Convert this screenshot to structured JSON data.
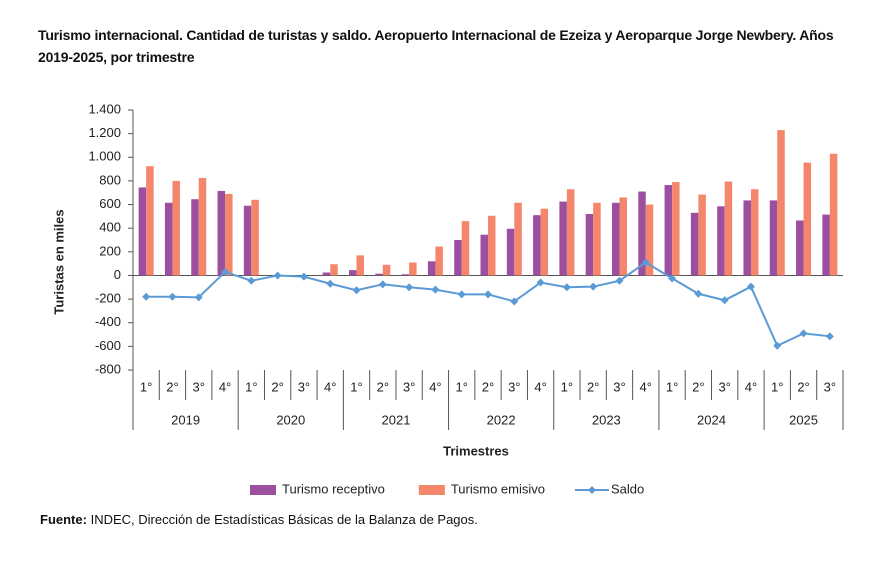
{
  "chart_data": {
    "type": "bar",
    "title": "Turismo internacional. Cantidad de turistas y saldo. Aeropuerto Internacional de Ezeiza y Aeroparque Jorge Newbery. Años 2019-2025, por trimestre",
    "y_label": "Turistas en miles",
    "x_label": "Trimestres",
    "categories": [
      "1°",
      "2°",
      "3°",
      "4°",
      "1°",
      "2°",
      "3°",
      "4°",
      "1°",
      "2°",
      "3°",
      "4°",
      "1°",
      "2°",
      "3°",
      "4°",
      "1°",
      "2°",
      "3°",
      "4°",
      "1°",
      "2°",
      "3°",
      "4°",
      "1°",
      "2°",
      "3°"
    ],
    "groups": [
      "2019",
      "2020",
      "2021",
      "2022",
      "2023",
      "2024",
      "2025"
    ],
    "series": [
      {
        "name": "Turismo receptivo",
        "type": "bar",
        "color": "#9b4f9e",
        "values": [
          745,
          615,
          645,
          715,
          590,
          0,
          0,
          25,
          45,
          15,
          10,
          120,
          300,
          345,
          395,
          510,
          625,
          520,
          615,
          710,
          765,
          530,
          585,
          635,
          635,
          465,
          515
        ]
      },
      {
        "name": "Turismo emisivo",
        "type": "bar",
        "color": "#f4876b",
        "values": [
          925,
          800,
          825,
          690,
          640,
          0,
          0,
          95,
          170,
          90,
          110,
          245,
          460,
          505,
          615,
          565,
          730,
          615,
          660,
          600,
          790,
          685,
          795,
          730,
          1230,
          955,
          1030
        ]
      },
      {
        "name": "Saldo",
        "type": "line",
        "color": "#5b9bd5",
        "values": [
          -180,
          -180,
          -185,
          30,
          -45,
          0,
          -10,
          -70,
          -125,
          -75,
          -100,
          -120,
          -160,
          -160,
          -220,
          -60,
          -100,
          -95,
          -45,
          110,
          -25,
          -155,
          -210,
          -95,
          -595,
          -490,
          -515
        ]
      }
    ],
    "ylim": [
      -800,
      1400
    ],
    "yticks": [
      -800,
      -600,
      -400,
      -200,
      0,
      200,
      400,
      600,
      800,
      {
        "value": 1000,
        "label": "1.000"
      },
      {
        "value": 1200,
        "label": "1.200"
      },
      {
        "value": 1400,
        "label": "1.400"
      }
    ],
    "legend": "bottom",
    "source_label": "Fuente:",
    "source_text": "INDEC, Dirección de Estadísticas Básicas de la Balanza de Pagos."
  }
}
